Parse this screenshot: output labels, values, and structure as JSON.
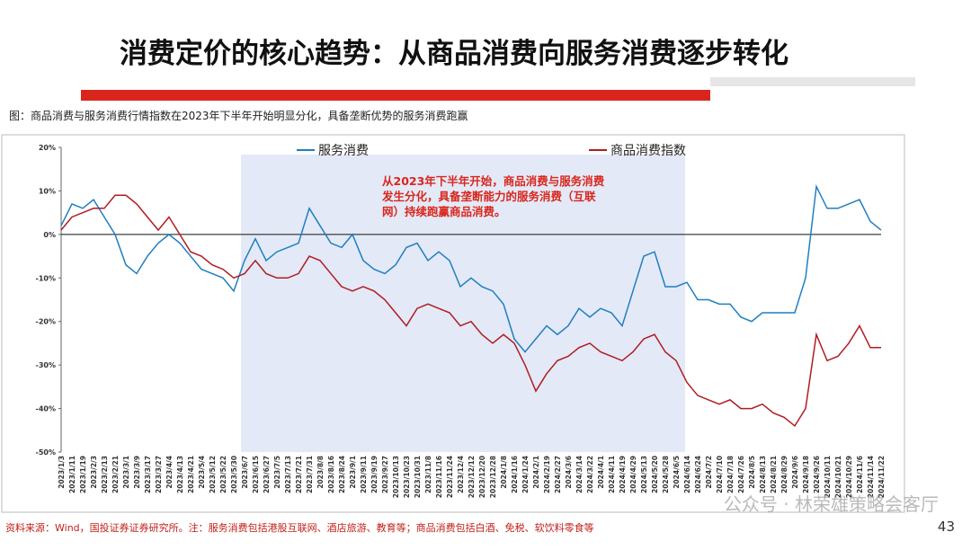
{
  "slide": {
    "title": "消费定价的核心趋势：从商品消费向服务消费逐步转化",
    "caption": "图：商品消费与服务消费行情指数在2023年下半年开始明显分化，具备垄断优势的服务消费跑赢",
    "source": "资料来源：Wind，国投证券证券研究所。注：服务消费包括港股互联网、酒店旅游、教育等；商品消费包括白酒、免税、软饮料零食等",
    "watermark": "公众号 · 林荣雄策略会客厅",
    "page_number": "43"
  },
  "chart_data": {
    "type": "line",
    "annotation": [
      "从2023年下半年开始，商品消费与服务消费",
      "发生分化，具备垄断能力的服务消费（互联",
      "网）持续跑赢商品消费。"
    ],
    "categories": [
      "2023/1/3",
      "2023/1/11",
      "2023/1/19",
      "2023/2/3",
      "2023/2/13",
      "2023/2/21",
      "2023/3/1",
      "2023/3/9",
      "2023/3/17",
      "2023/3/27",
      "2023/4/4",
      "2023/4/13",
      "2023/4/21",
      "2023/5/4",
      "2023/5/12",
      "2023/5/22",
      "2023/5/30",
      "2023/6/7",
      "2023/6/15",
      "2023/6/27",
      "2023/7/5",
      "2023/7/13",
      "2023/7/21",
      "2023/7/31",
      "2023/8/8",
      "2023/8/16",
      "2023/8/24",
      "2023/9/1",
      "2023/9/11",
      "2023/9/19",
      "2023/9/27",
      "2023/10/13",
      "2023/10/23",
      "2023/10/31",
      "2023/11/8",
      "2023/11/16",
      "2023/11/24",
      "2023/12/4",
      "2023/12/12",
      "2023/12/20",
      "2023/12/28",
      "2024/1/8",
      "2024/1/16",
      "2024/1/24",
      "2024/2/1",
      "2024/2/19",
      "2024/2/27",
      "2024/3/6",
      "2024/3/14",
      "2024/3/22",
      "2024/4/1",
      "2024/4/11",
      "2024/4/19",
      "2024/4/29",
      "2024/5/13",
      "2024/5/20",
      "2024/5/28",
      "2024/6/5",
      "2024/6/14",
      "2024/6/24",
      "2024/7/2",
      "2024/7/10",
      "2024/7/18",
      "2024/7/26",
      "2024/8/5",
      "2024/8/13",
      "2024/8/21",
      "2024/8/29",
      "2024/9/6",
      "2024/9/18",
      "2024/9/26",
      "2024/10/11",
      "2024/10/21",
      "2024/10/29",
      "2024/11/6",
      "2024/11/14",
      "2024/11/22"
    ],
    "series": [
      {
        "name": "服务消费",
        "color": "#1f7fc0",
        "values": [
          2,
          7,
          6,
          8,
          4,
          0,
          -7,
          -9,
          -5,
          -2,
          0,
          -2,
          -5,
          -8,
          -9,
          -10,
          -13,
          -6,
          -1,
          -6,
          -4,
          -3,
          -2,
          6,
          2,
          -2,
          -3,
          0,
          -6,
          -8,
          -9,
          -7,
          -3,
          -2,
          -6,
          -4,
          -6,
          -12,
          -10,
          -12,
          -13,
          -16,
          -24,
          -27,
          -24,
          -21,
          -23,
          -21,
          -17,
          -19,
          -17,
          -18,
          -21,
          -13,
          -5,
          -4,
          -12,
          -12,
          -11,
          -15,
          -15,
          -16,
          -16,
          -19,
          -20,
          -18,
          -18,
          -18,
          -18,
          -10,
          11,
          6,
          6,
          7,
          8,
          3,
          1
        ]
      },
      {
        "name": "商品消费指数",
        "color": "#b01c22",
        "values": [
          1,
          4,
          5,
          6,
          6,
          9,
          9,
          7,
          4,
          1,
          4,
          0,
          -4,
          -5,
          -7,
          -8,
          -10,
          -9,
          -6,
          -9,
          -10,
          -10,
          -9,
          -5,
          -6,
          -9,
          -12,
          -13,
          -12,
          -13,
          -15,
          -18,
          -21,
          -17,
          -16,
          -17,
          -18,
          -21,
          -20,
          -23,
          -25,
          -23,
          -25,
          -30,
          -36,
          -32,
          -29,
          -28,
          -26,
          -25,
          -27,
          -28,
          -29,
          -27,
          -24,
          -23,
          -27,
          -29,
          -34,
          -37,
          -38,
          -39,
          -38,
          -40,
          -40,
          -39,
          -41,
          -42,
          -44,
          -40,
          -23,
          -29,
          -28,
          -25,
          -21,
          -26,
          -26
        ]
      }
    ],
    "ylim": [
      -50,
      20
    ],
    "yticks": [
      {
        "value": 20,
        "label": "20%"
      },
      {
        "value": 10,
        "label": "10%"
      },
      {
        "value": 0,
        "label": "0%"
      },
      {
        "value": -10,
        "label": "-10%"
      },
      {
        "value": -20,
        "label": "-20%"
      },
      {
        "value": -30,
        "label": "-30%"
      },
      {
        "value": -40,
        "label": "-40%"
      },
      {
        "value": -50,
        "label": "-50%"
      }
    ]
  }
}
